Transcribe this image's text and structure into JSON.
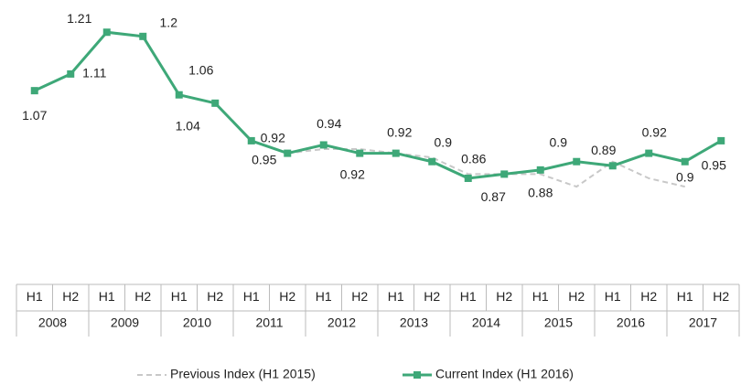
{
  "chart_data": {
    "type": "line",
    "categories": [
      "H1",
      "H2",
      "H1",
      "H2",
      "H1",
      "H2",
      "H1",
      "H2",
      "H1",
      "H2",
      "H1",
      "H2",
      "H1",
      "H2",
      "H1",
      "H2",
      "H1",
      "H2",
      "H1",
      "H2"
    ],
    "groups": [
      "2008",
      "2009",
      "2010",
      "2011",
      "2012",
      "2013",
      "2014",
      "2015",
      "2016",
      "2017"
    ],
    "series": [
      {
        "name": "Previous Index (H1 2015)",
        "color": "#c8c8c8",
        "dashed": true,
        "values": [
          null,
          null,
          null,
          null,
          null,
          null,
          null,
          0.92,
          0.93,
          0.93,
          0.92,
          0.91,
          0.87,
          0.87,
          0.87,
          0.84,
          0.9,
          0.86,
          0.84,
          null
        ]
      },
      {
        "name": "Current Index (H1 2016)",
        "color": "#3ea878",
        "marker": "square",
        "values": [
          1.07,
          1.11,
          1.21,
          1.2,
          1.06,
          1.04,
          0.95,
          0.92,
          0.94,
          0.92,
          0.92,
          0.9,
          0.86,
          0.87,
          0.88,
          0.9,
          0.89,
          0.92,
          0.9,
          0.95
        ]
      }
    ],
    "ylim": [
      0.7,
      1.25
    ]
  }
}
